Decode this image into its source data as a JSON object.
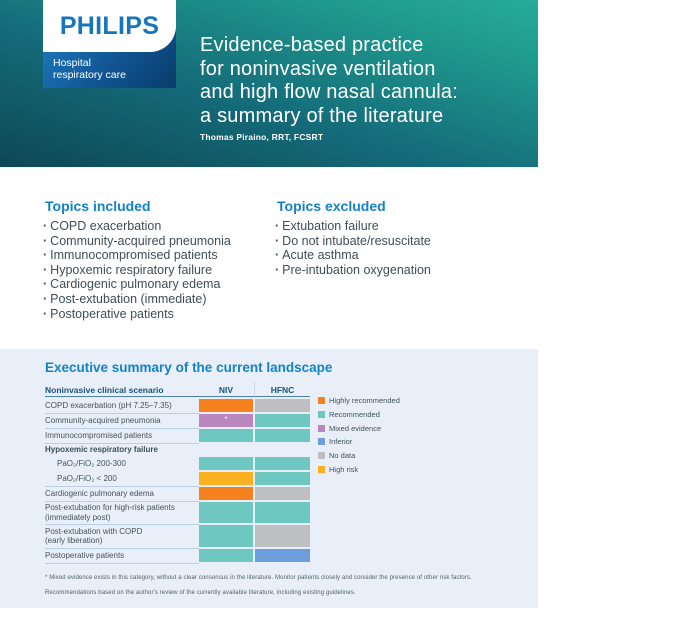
{
  "header": {
    "logo": {
      "brand": "PHILIPS",
      "sub_line1": "Hospital",
      "sub_line2": "respiratory care"
    },
    "title_lines": [
      "Evidence-based practice",
      "for noninvasive ventilation",
      "and high flow nasal cannula:",
      "a summary of the literature"
    ],
    "author": "Thomas Piraino, RRT, FCSRT",
    "colors": {
      "gradient_dark": "#0d4854",
      "gradient_bright": "#27ab99",
      "philips_blue": "#1576be"
    }
  },
  "topics_included": {
    "heading": "Topics included",
    "items": [
      "COPD exacerbation",
      "Community-acquired pneumonia",
      "Immunocompromised patients",
      "Hypoxemic respiratory failure",
      "Cardiogenic pulmonary edema",
      "Post-extubation (immediate)",
      "Postoperative patients"
    ]
  },
  "topics_excluded": {
    "heading": "Topics excluded",
    "items": [
      "Extubation failure",
      "Do not intubate/resuscitate",
      "Acute asthma",
      "Pre-intubation oxygenation"
    ]
  },
  "summary": {
    "heading": "Executive summary of the current landscape",
    "panel_bg": "#e9eff8",
    "accent_blue": "#1482c8",
    "table": {
      "col_headers": {
        "scenario": "Noninvasive clinical scenario",
        "niv": "NIV",
        "hfnc": "HFNC"
      },
      "rows": [
        {
          "label": "COPD exacerbation (pH 7.25–7.35)",
          "niv": "highly_recommended",
          "hfnc": "no_data"
        },
        {
          "label": "Community-acquired pneumonia",
          "niv": "mixed_evidence",
          "niv_note": "*",
          "hfnc": "recommended"
        },
        {
          "label": "Immunocompromised patients",
          "niv": "recommended",
          "hfnc": "recommended"
        },
        {
          "label": "Hypoxemic respiratory failure",
          "type": "section_header"
        },
        {
          "label": "PaO₂/FiO₂ 200-300",
          "indent": true,
          "niv": "recommended",
          "hfnc": "recommended"
        },
        {
          "label": "PaO₂/FiO₂ < 200",
          "indent": true,
          "niv": "high_risk",
          "hfnc": "recommended"
        },
        {
          "label": "Cardiogenic pulmonary edema",
          "niv": "highly_recommended",
          "hfnc": "no_data"
        },
        {
          "label": "Post-extubation for high-risk patients",
          "label2": "(immediately post)",
          "niv": "recommended",
          "hfnc": "recommended"
        },
        {
          "label": "Post-extubation with COPD",
          "label2": "(early liberation)",
          "niv": "recommended",
          "hfnc": "no_data"
        },
        {
          "label": "Postoperative patients",
          "niv": "recommended",
          "hfnc": "inferior"
        }
      ]
    },
    "legend": [
      {
        "key": "highly_recommended",
        "label": "Highly recommended",
        "color": "#f5821f"
      },
      {
        "key": "recommended",
        "label": "Recommended",
        "color": "#6ec8c1"
      },
      {
        "key": "mixed_evidence",
        "label": "Mixed evidence",
        "color": "#b986bd"
      },
      {
        "key": "inferior",
        "label": "Inferior",
        "color": "#6d9edb"
      },
      {
        "key": "no_data",
        "label": "No data",
        "color": "#bdbfc1"
      },
      {
        "key": "high_risk",
        "label": "High risk",
        "color": "#fbb022"
      }
    ],
    "footnotes": [
      "* Mixed evidence exists in this category, without a clear consensus in the literature. Monitor patients closely and consider the presence of other risk factors.",
      "Recommendations based on the author's review of the currently available literature, including existing guidelines."
    ]
  }
}
